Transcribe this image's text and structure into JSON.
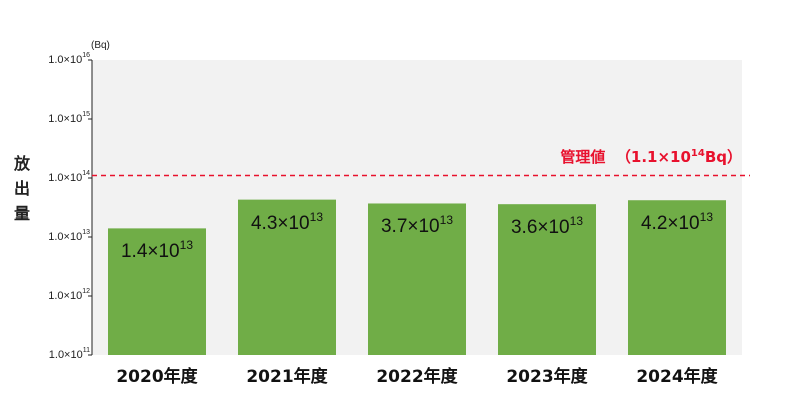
{
  "chart_data": {
    "type": "bar",
    "y_scale": "log",
    "unit": "(Bq)",
    "ylabel_chars": [
      "放",
      "出",
      "量"
    ],
    "yticks": [
      {
        "value": 100000000000.0,
        "label_base": "1.0×10",
        "label_exp": "11"
      },
      {
        "value": 1000000000000.0,
        "label_base": "1.0×10",
        "label_exp": "12"
      },
      {
        "value": 10000000000000.0,
        "label_base": "1.0×10",
        "label_exp": "13"
      },
      {
        "value": 100000000000000.0,
        "label_base": "1.0×10",
        "label_exp": "14"
      },
      {
        "value": 1000000000000000.0,
        "label_base": "1.0×10",
        "label_exp": "15"
      },
      {
        "value": 1e+16,
        "label_base": "1.0×10",
        "label_exp": "16"
      }
    ],
    "ylim": [
      100000000000.0,
      1e+16
    ],
    "categories": [
      "2020年度",
      "2021年度",
      "2022年度",
      "2023年度",
      "2024年度"
    ],
    "values": [
      14000000000000.0,
      43000000000000.0,
      37000000000000.0,
      36000000000000.0,
      42000000000000.0
    ],
    "data_label_bases": [
      "1.4×10",
      "4.3×10",
      "3.7×10",
      "3.6×10",
      "4.2×10"
    ],
    "data_label_exps": [
      "13",
      "13",
      "13",
      "13",
      "13"
    ],
    "bar_color": "#70ad47",
    "threshold": {
      "value": 110000000000000.0,
      "label_text": "管理値",
      "label_value_base": "（1.1×10",
      "label_value_exp": "14",
      "label_value_suffix": "Bq）",
      "color": "#e8112d"
    }
  }
}
